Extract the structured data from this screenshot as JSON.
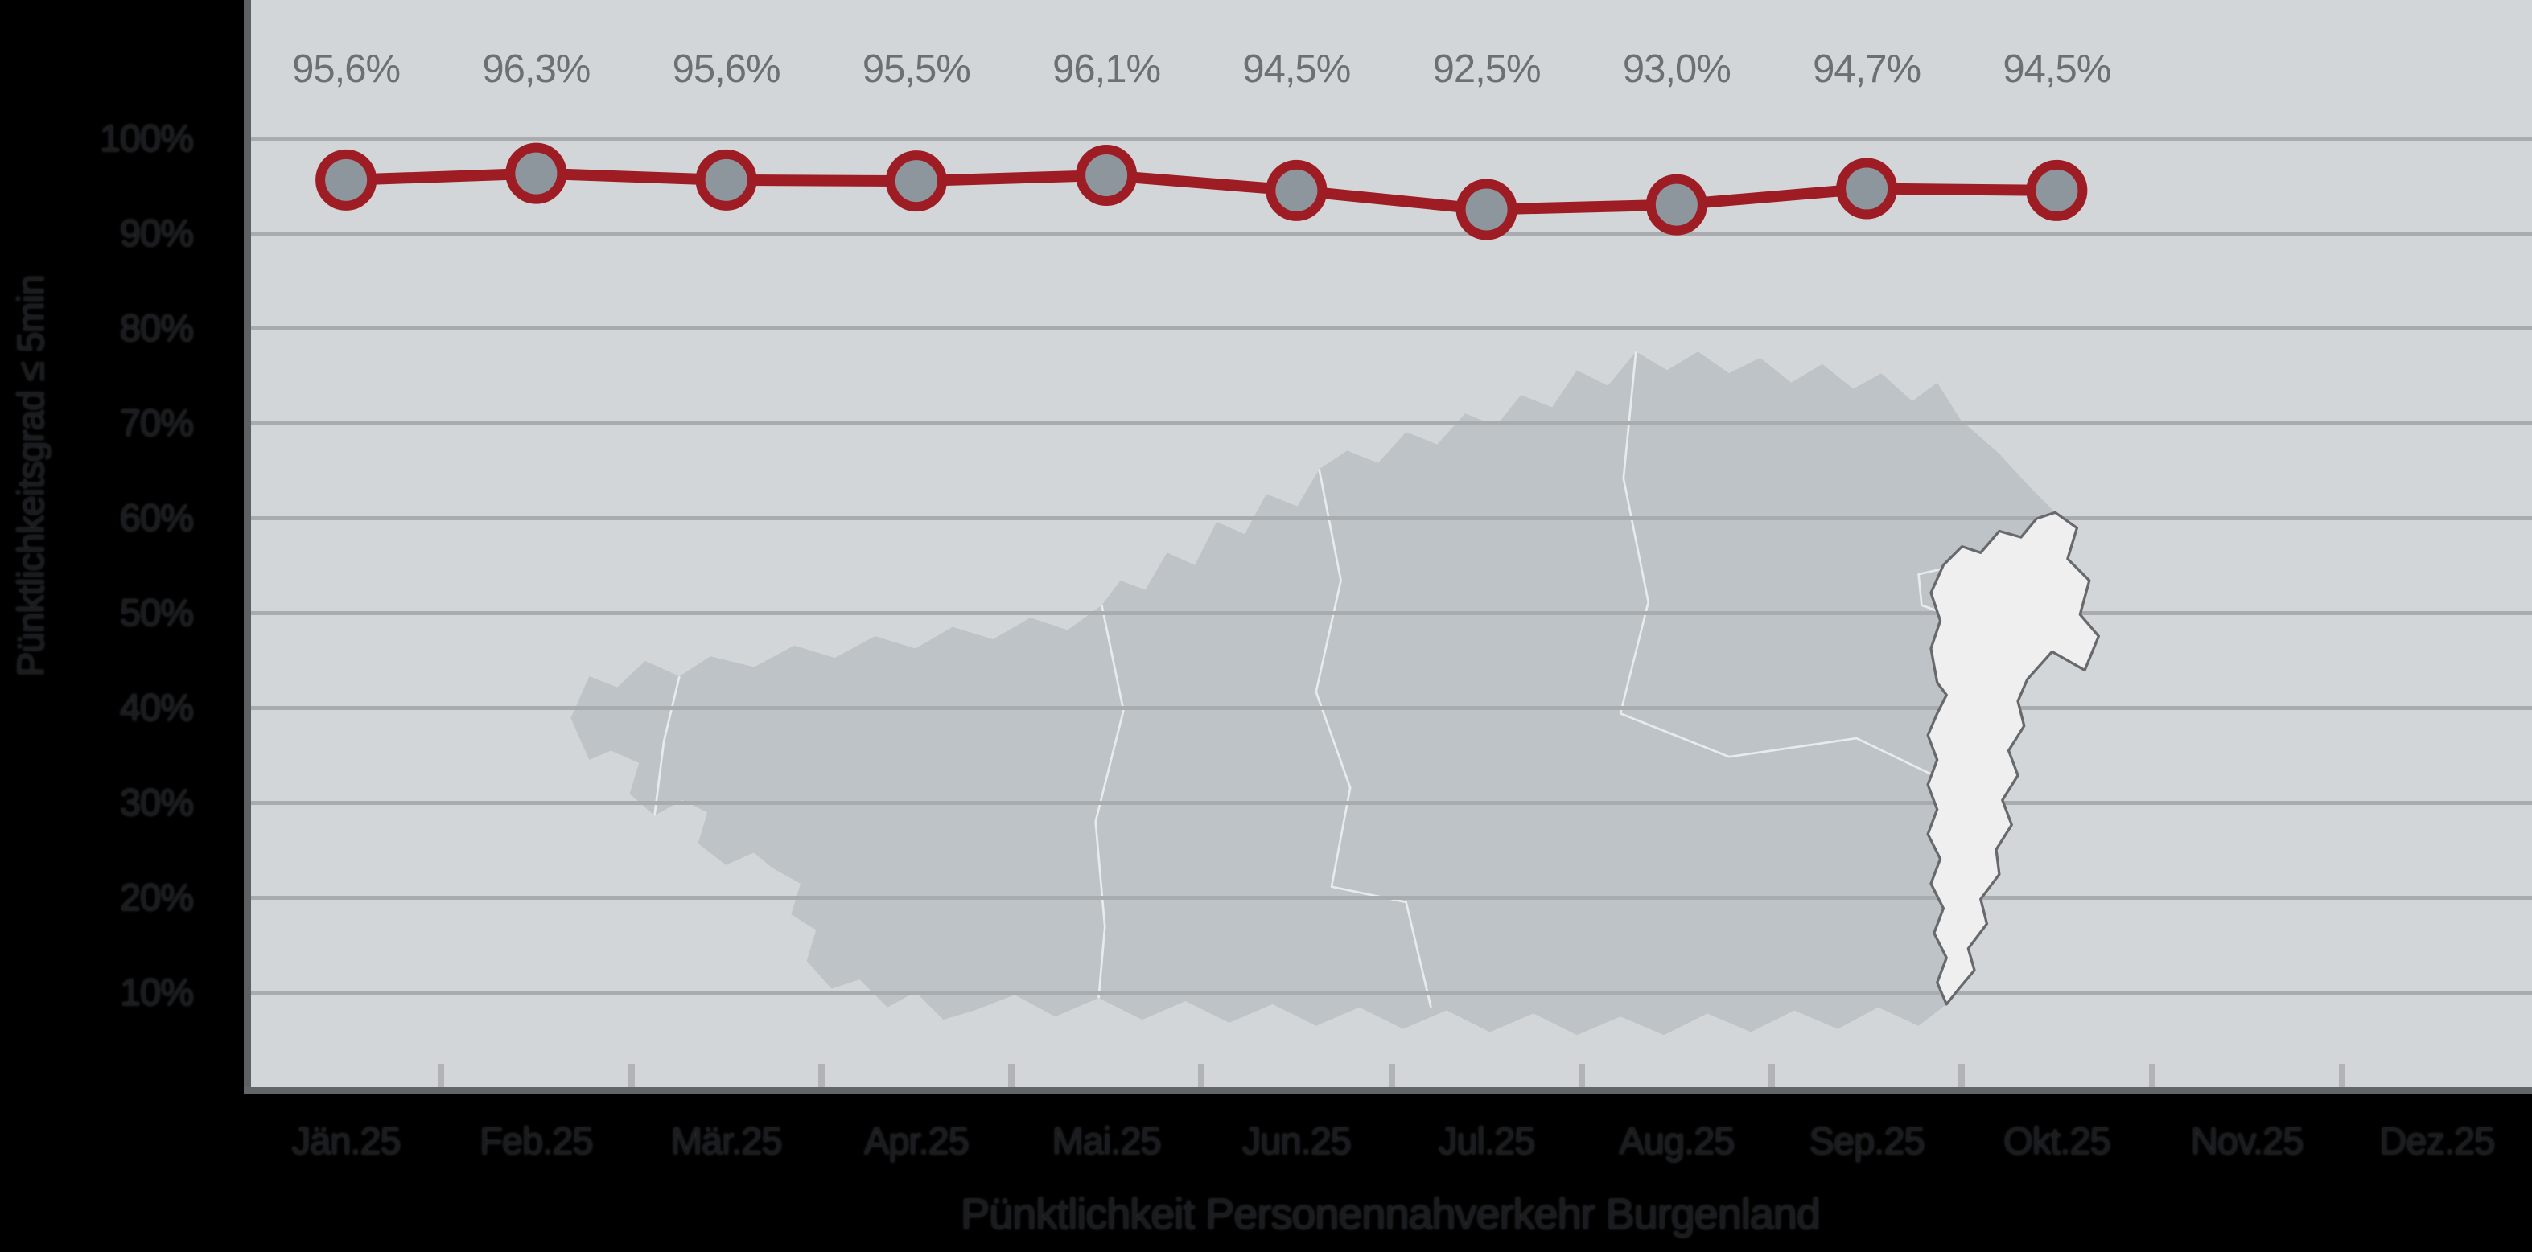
{
  "chart_data": {
    "type": "line",
    "title": "Pünktlichkeit Personennahverkehr Burgenland",
    "ylabel": "Pünktlichkeitsgrad ≤ 5min",
    "xlabel": "",
    "categories": [
      "Jän.25",
      "Feb.25",
      "Mär.25",
      "Apr.25",
      "Mai.25",
      "Jun.25",
      "Jul.25",
      "Aug.25",
      "Sep.25",
      "Okt.25",
      "Nov.25",
      "Dez.25"
    ],
    "series": [
      {
        "name": "Pünktlichkeit Personennahverkehr Burgenland",
        "values": [
          95.6,
          96.3,
          95.6,
          95.5,
          96.1,
          94.5,
          92.5,
          93.0,
          94.7,
          94.5,
          null,
          null
        ]
      }
    ],
    "data_labels": [
      "95,6%",
      "96,3%",
      "95,6%",
      "95,5%",
      "96,1%",
      "94,5%",
      "92,5%",
      "93,0%",
      "94,7%",
      "94,5%"
    ],
    "y_tick_labels": [
      "10%",
      "20%",
      "30%",
      "40%",
      "50%",
      "60%",
      "70%",
      "80%",
      "90%",
      "100%"
    ],
    "ylim": [
      0,
      114.6
    ],
    "grid": "horizontal gridlines every 10%",
    "legend_position": "none",
    "background_note": "grey Austria map with Burgenland highlighted behind the plot"
  },
  "colors": {
    "page_background": "#000000",
    "plot_background": "#D3D6D8",
    "gridline": "#A9ACAE",
    "axis_line": "#5E6163",
    "tick_mark": "#B1B3B5",
    "line_red": "#9E1D24",
    "marker_fill": "#8E969D",
    "marker_ring": "#9E1D24",
    "data_label_text": "#6C6F73",
    "axis_text": "#1A1C1F",
    "map_fill": "#BEC3C7",
    "map_inner_border": "#E8EAEB",
    "highlight_fill": "#EFEFEF",
    "highlight_border": "#67696C"
  }
}
